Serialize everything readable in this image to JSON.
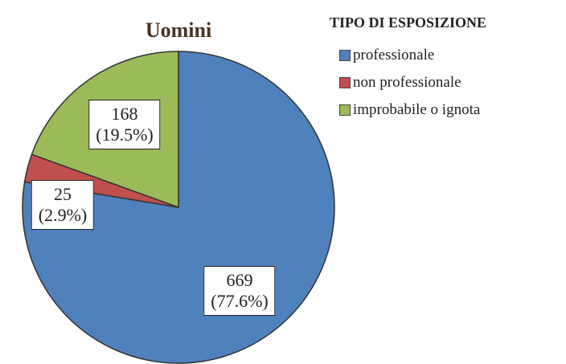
{
  "chart_data": {
    "type": "pie",
    "title": "Uomini",
    "legend_title": "TIPO DI ESPOSIZIONE",
    "legend": "right",
    "categories": [
      "professionale",
      "non professionale",
      "improbabile o ignota"
    ],
    "values": [
      669,
      25,
      168
    ],
    "value_labels": [
      "669\n(77.6%)",
      "25\n(2.9%)",
      "168\n(19.5%)"
    ],
    "colors": [
      "#4f81bd",
      "#c0504d",
      "#9bbb59"
    ]
  }
}
